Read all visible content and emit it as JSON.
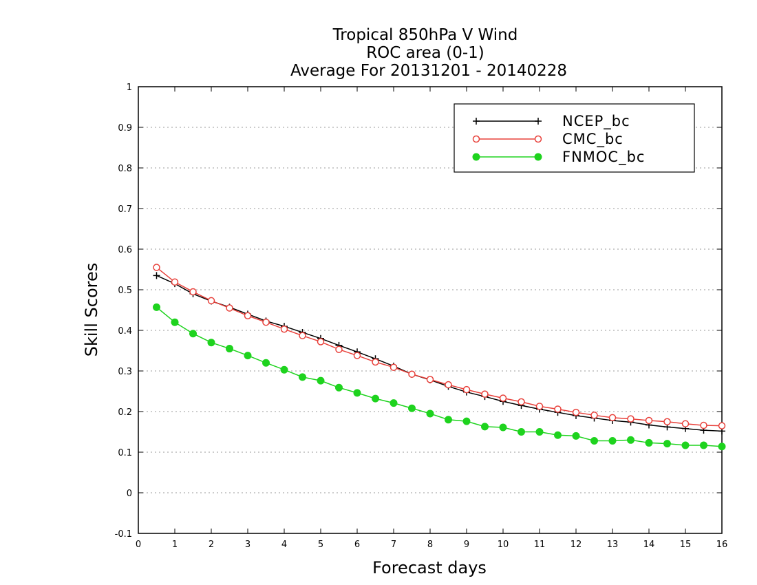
{
  "chart_data": {
    "type": "line",
    "title": [
      "Tropical 850hPa V Wind",
      "ROC area (0-1)",
      "Average For 20131201 - 20140228"
    ],
    "xlabel": "Forecast days",
    "ylabel": "Skill Scores",
    "xlim": [
      0,
      16
    ],
    "ylim": [
      -0.1,
      1
    ],
    "xticks": [
      "0",
      "1",
      "2",
      "3",
      "4",
      "5",
      "6",
      "7",
      "8",
      "9",
      "10",
      "11",
      "12",
      "13",
      "14",
      "15",
      "16"
    ],
    "yticks": [
      "-0.1",
      "0",
      "0.1",
      "0.2",
      "0.3",
      "0.4",
      "0.5",
      "0.6",
      "0.7",
      "0.8",
      "0.9",
      "1"
    ],
    "grid": true,
    "legend_position": "top-right",
    "x": [
      0.5,
      1,
      1.5,
      2,
      2.5,
      3,
      3.5,
      4,
      4.5,
      5,
      5.5,
      6,
      6.5,
      7,
      7.5,
      8,
      8.5,
      9,
      9.5,
      10,
      10.5,
      11,
      11.5,
      12,
      12.5,
      13,
      13.5,
      14,
      14.5,
      15,
      15.5,
      16
    ],
    "series": [
      {
        "name": "NCEP_bc",
        "color": "#000000",
        "marker": "plus",
        "values": [
          0.535,
          0.515,
          0.49,
          0.472,
          0.457,
          0.44,
          0.423,
          0.41,
          0.395,
          0.38,
          0.363,
          0.347,
          0.33,
          0.312,
          0.292,
          0.278,
          0.262,
          0.248,
          0.237,
          0.225,
          0.215,
          0.206,
          0.198,
          0.19,
          0.184,
          0.178,
          0.174,
          0.167,
          0.162,
          0.158,
          0.154,
          0.152
        ]
      },
      {
        "name": "CMC_bc",
        "color": "#e8403a",
        "marker": "open-circle",
        "values": [
          0.555,
          0.519,
          0.495,
          0.473,
          0.455,
          0.436,
          0.42,
          0.403,
          0.387,
          0.372,
          0.353,
          0.338,
          0.322,
          0.309,
          0.292,
          0.279,
          0.266,
          0.254,
          0.243,
          0.233,
          0.224,
          0.213,
          0.206,
          0.198,
          0.191,
          0.185,
          0.182,
          0.178,
          0.175,
          0.17,
          0.166,
          0.165
        ]
      },
      {
        "name": "FNMOC_bc",
        "color": "#1ed31e",
        "marker": "filled-circle",
        "values": [
          0.457,
          0.42,
          0.392,
          0.37,
          0.355,
          0.338,
          0.32,
          0.303,
          0.285,
          0.276,
          0.259,
          0.246,
          0.232,
          0.221,
          0.208,
          0.195,
          0.18,
          0.176,
          0.163,
          0.161,
          0.15,
          0.15,
          0.142,
          0.14,
          0.128,
          0.128,
          0.13,
          0.123,
          0.121,
          0.117,
          0.117,
          0.114
        ]
      }
    ]
  }
}
